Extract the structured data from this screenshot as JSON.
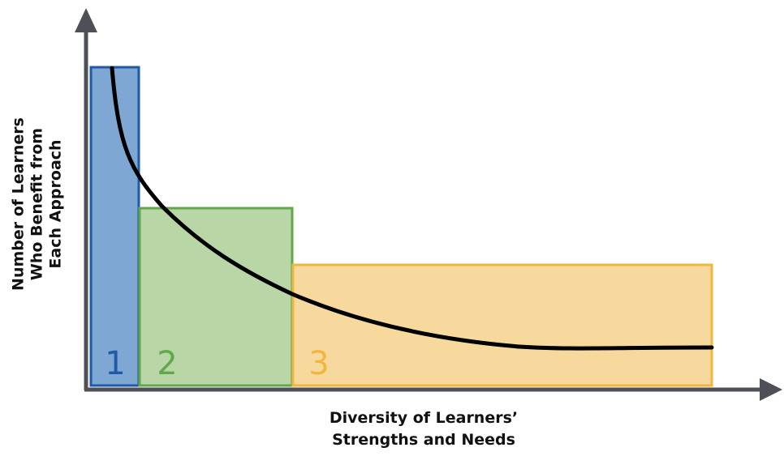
{
  "figure": {
    "y_axis_label_lines": [
      "Number of Learners",
      "Who Benefit from",
      "Each Approach"
    ],
    "x_axis_label_lines": [
      "Diversity of Learners’",
      "Strengths and Needs"
    ],
    "regions": [
      {
        "label": "1",
        "fill": "#7ea8d3",
        "stroke": "#1f5aa6",
        "text_color": "#1f5aa6"
      },
      {
        "label": "2",
        "fill": "#b8d6a6",
        "stroke": "#62a84a",
        "text_color": "#62a84a"
      },
      {
        "label": "3",
        "fill": "#f8d99d",
        "stroke": "#f0b63e",
        "text_color": "#f0b63e"
      }
    ],
    "curve_color": "#000000",
    "axis_color": "#4d5057"
  }
}
